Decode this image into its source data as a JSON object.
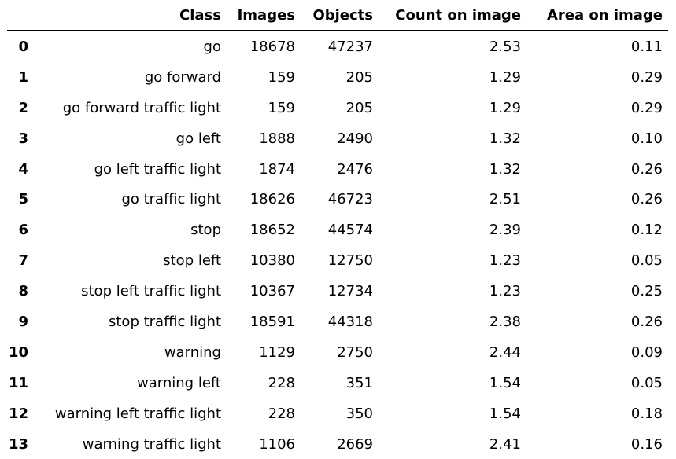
{
  "table": {
    "headers": {
      "index": "",
      "class": "Class",
      "images": "Images",
      "objects": "Objects",
      "count": "Count on image",
      "area": "Area on image"
    },
    "rows": [
      {
        "index": "0",
        "class": "go",
        "images": "18678",
        "objects": "47237",
        "count": "2.53",
        "area": "0.11"
      },
      {
        "index": "1",
        "class": "go forward",
        "images": "159",
        "objects": "205",
        "count": "1.29",
        "area": "0.29"
      },
      {
        "index": "2",
        "class": "go forward traffic light",
        "images": "159",
        "objects": "205",
        "count": "1.29",
        "area": "0.29"
      },
      {
        "index": "3",
        "class": "go left",
        "images": "1888",
        "objects": "2490",
        "count": "1.32",
        "area": "0.10"
      },
      {
        "index": "4",
        "class": "go left traffic light",
        "images": "1874",
        "objects": "2476",
        "count": "1.32",
        "area": "0.26"
      },
      {
        "index": "5",
        "class": "go traffic light",
        "images": "18626",
        "objects": "46723",
        "count": "2.51",
        "area": "0.26"
      },
      {
        "index": "6",
        "class": "stop",
        "images": "18652",
        "objects": "44574",
        "count": "2.39",
        "area": "0.12"
      },
      {
        "index": "7",
        "class": "stop left",
        "images": "10380",
        "objects": "12750",
        "count": "1.23",
        "area": "0.05"
      },
      {
        "index": "8",
        "class": "stop left traffic light",
        "images": "10367",
        "objects": "12734",
        "count": "1.23",
        "area": "0.25"
      },
      {
        "index": "9",
        "class": "stop traffic light",
        "images": "18591",
        "objects": "44318",
        "count": "2.38",
        "area": "0.26"
      },
      {
        "index": "10",
        "class": "warning",
        "images": "1129",
        "objects": "2750",
        "count": "2.44",
        "area": "0.09"
      },
      {
        "index": "11",
        "class": "warning left",
        "images": "228",
        "objects": "351",
        "count": "1.54",
        "area": "0.05"
      },
      {
        "index": "12",
        "class": "warning left traffic light",
        "images": "228",
        "objects": "350",
        "count": "1.54",
        "area": "0.18"
      },
      {
        "index": "13",
        "class": "warning traffic light",
        "images": "1106",
        "objects": "2669",
        "count": "2.41",
        "area": "0.16"
      }
    ]
  }
}
